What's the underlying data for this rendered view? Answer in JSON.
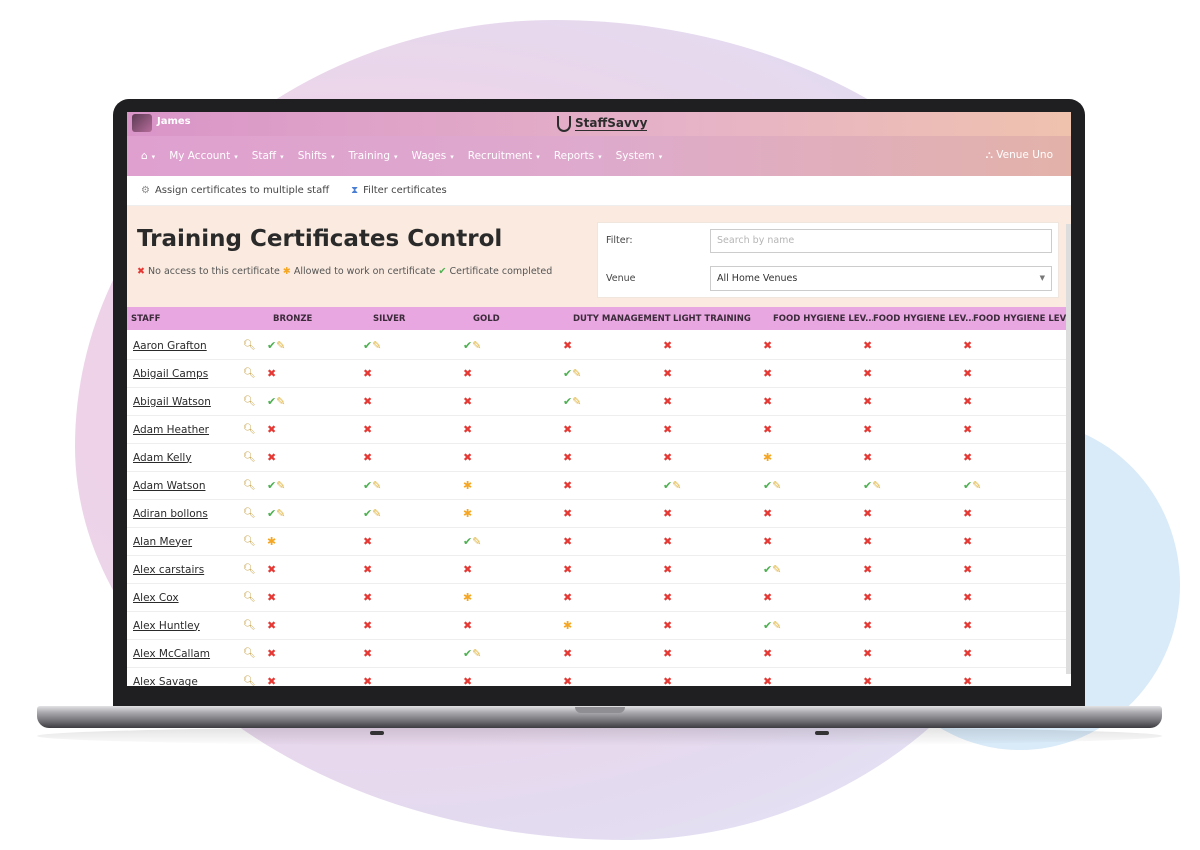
{
  "user": {
    "name": "James"
  },
  "brand": {
    "name": "StaffSavvy"
  },
  "nav": {
    "home_caret": "▾",
    "items": [
      "My Account",
      "Staff",
      "Shifts",
      "Training",
      "Wages",
      "Recruitment",
      "Reports",
      "System"
    ],
    "venue": "Venue Uno"
  },
  "subnav": {
    "assign": "Assign certificates to multiple staff",
    "filter": "Filter certificates"
  },
  "page": {
    "title": "Training Certificates Control",
    "legend_none": "No access to this certificate",
    "legend_allowed": "Allowed to work on certificate",
    "legend_completed": "Certificate completed"
  },
  "filter": {
    "filter_label": "Filter:",
    "search_placeholder": "Search by name",
    "venue_label": "Venue",
    "venue_value": "All Home Venues"
  },
  "table": {
    "columns": [
      "STAFF",
      "BRONZE",
      "SILVER",
      "GOLD",
      "DUTY MANAGEMENT",
      "LIGHT TRAINING",
      "FOOD HYGIENE LEV...",
      "FOOD HYGIENE LEV...",
      "FOOD HYGIENE LEV..."
    ],
    "status_legend": {
      "x": "no-access",
      "a": "allowed",
      "c": "completed"
    },
    "rows": [
      {
        "name": "Aaron Grafton",
        "status": [
          "c",
          "c",
          "c",
          "x",
          "x",
          "x",
          "x",
          "x"
        ]
      },
      {
        "name": "Abigail Camps",
        "status": [
          "x",
          "x",
          "x",
          "c",
          "x",
          "x",
          "x",
          "x"
        ]
      },
      {
        "name": "Abigail Watson",
        "status": [
          "c",
          "x",
          "x",
          "c",
          "x",
          "x",
          "x",
          "x"
        ]
      },
      {
        "name": "Adam Heather",
        "status": [
          "x",
          "x",
          "x",
          "x",
          "x",
          "x",
          "x",
          "x"
        ]
      },
      {
        "name": "Adam Kelly",
        "status": [
          "x",
          "x",
          "x",
          "x",
          "x",
          "a",
          "x",
          "x"
        ]
      },
      {
        "name": "Adam Watson",
        "status": [
          "c",
          "c",
          "a",
          "x",
          "c",
          "c",
          "c",
          "c"
        ]
      },
      {
        "name": "Adiran bollons",
        "status": [
          "c",
          "c",
          "a",
          "x",
          "x",
          "x",
          "x",
          "x"
        ]
      },
      {
        "name": "Alan Meyer",
        "status": [
          "a",
          "x",
          "c",
          "x",
          "x",
          "x",
          "x",
          "x"
        ]
      },
      {
        "name": "Alex carstairs",
        "status": [
          "x",
          "x",
          "x",
          "x",
          "x",
          "c",
          "x",
          "x"
        ]
      },
      {
        "name": "Alex Cox",
        "status": [
          "x",
          "x",
          "a",
          "x",
          "x",
          "x",
          "x",
          "x"
        ]
      },
      {
        "name": "Alex Huntley",
        "status": [
          "x",
          "x",
          "x",
          "a",
          "x",
          "c",
          "x",
          "x"
        ]
      },
      {
        "name": "Alex McCallam",
        "status": [
          "x",
          "x",
          "c",
          "x",
          "x",
          "x",
          "x",
          "x"
        ]
      },
      {
        "name": "Alex Savage",
        "status": [
          "x",
          "x",
          "x",
          "x",
          "x",
          "x",
          "x",
          "x"
        ]
      }
    ]
  },
  "colors": {
    "accent": "#e8a7e0",
    "no_access": "#e53935",
    "allowed": "#f5a623",
    "completed": "#4caf50"
  }
}
